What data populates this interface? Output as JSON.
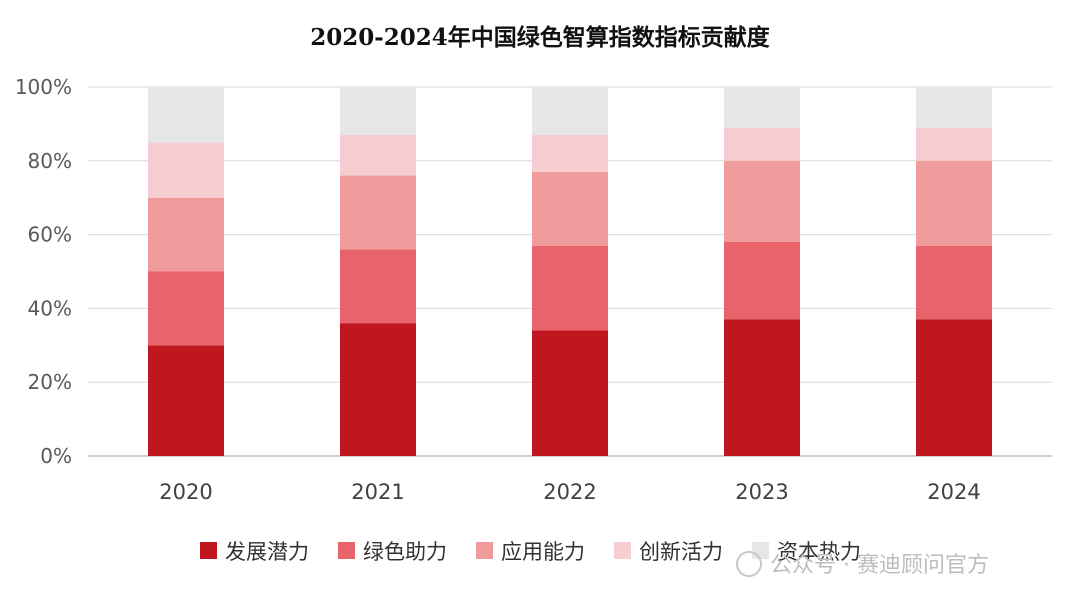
{
  "chart_data": {
    "type": "bar",
    "stacked": true,
    "title": "2020-2024年中国绿色智算指数指标贡献度",
    "categories": [
      "2020",
      "2021",
      "2022",
      "2023",
      "2024"
    ],
    "ylim": [
      0,
      100
    ],
    "yticks": [
      "0%",
      "20%",
      "40%",
      "60%",
      "80%",
      "100%"
    ],
    "grid": true,
    "legend_position": "bottom",
    "series": [
      {
        "name": "发展潜力",
        "color": "#c0161f",
        "values": [
          30,
          36,
          34,
          37,
          37
        ]
      },
      {
        "name": "绿色助力",
        "color": "#e8636a",
        "values": [
          20,
          20,
          23,
          21,
          20
        ]
      },
      {
        "name": "应用能力",
        "color": "#ef9b9b",
        "values": [
          20,
          20,
          20,
          22,
          23
        ]
      },
      {
        "name": "创新活力",
        "color": "#f6cdd0",
        "values": [
          15,
          11,
          10,
          9,
          9
        ]
      },
      {
        "name": "资本热力",
        "color": "#e6e6e6",
        "values": [
          15,
          13,
          13,
          11,
          11
        ]
      }
    ]
  },
  "watermark": {
    "text": "公众号 · 赛迪顾问官方"
  }
}
